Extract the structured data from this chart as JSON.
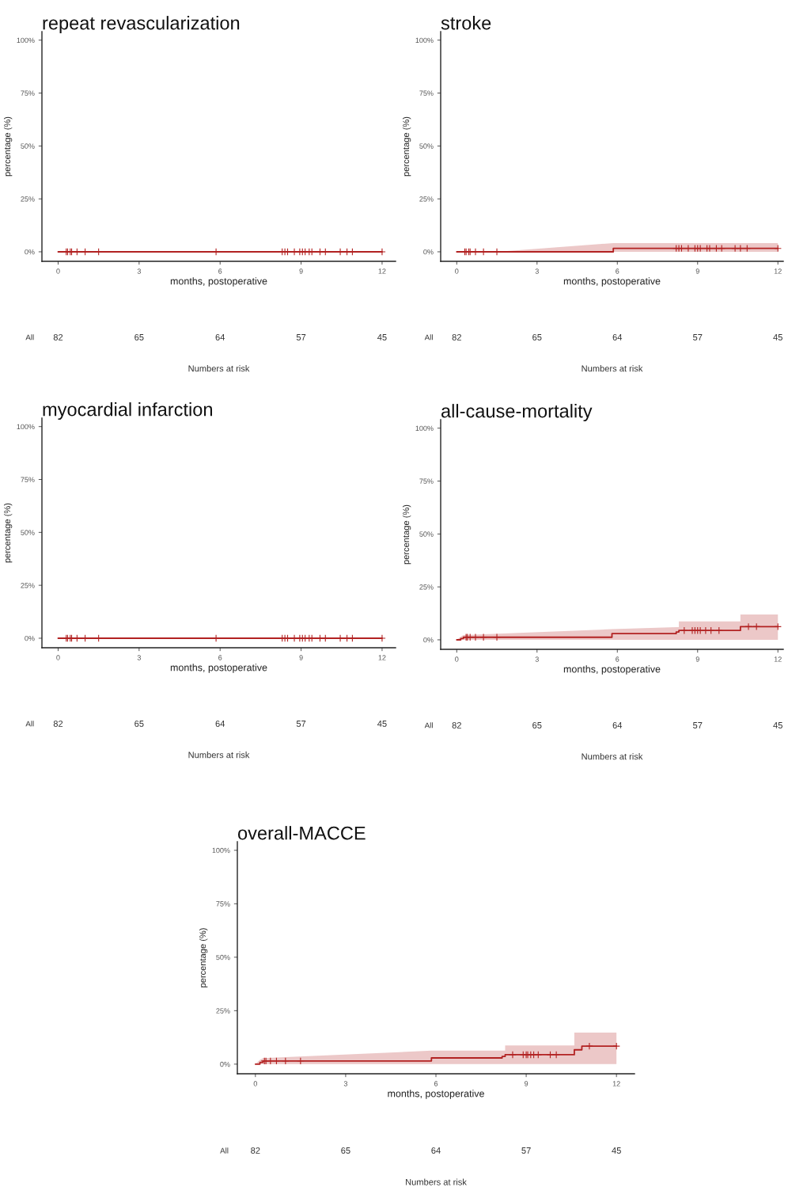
{
  "chart_data": [
    {
      "type": "step",
      "title": "repeat revascularization",
      "xlabel": "months, postoperative",
      "ylabel": "percentage (%)",
      "xlim": [
        -0.6,
        12.5
      ],
      "ylim": [
        -4.5,
        104
      ],
      "xticks": [
        0,
        3,
        6,
        9,
        12
      ],
      "yticks": [
        {
          "value": 0,
          "label": "0%"
        },
        {
          "value": 25,
          "label": "25%"
        },
        {
          "value": 50,
          "label": "50%"
        },
        {
          "value": 75,
          "label": "75%"
        },
        {
          "value": 100,
          "label": "100%"
        }
      ],
      "series": [
        {
          "color": "#b22222",
          "x": [
            0,
            12
          ],
          "values": [
            0,
            0
          ]
        },
        {
          "type": "scatter",
          "marker": "cross",
          "color": "#b22222",
          "x": [
            0.3,
            0.35,
            0.45,
            0.5,
            0.7,
            1.0,
            1.5,
            5.85,
            8.3,
            8.4,
            8.5,
            8.75,
            8.95,
            9.05,
            9.15,
            9.3,
            9.4,
            9.7,
            9.9,
            10.45,
            10.7,
            10.9,
            12
          ],
          "values": [
            0,
            0,
            0,
            0,
            0,
            0,
            0,
            0,
            0,
            0,
            0,
            0,
            0,
            0,
            0,
            0,
            0,
            0,
            0,
            0,
            0,
            0,
            0
          ]
        }
      ],
      "annotations": [
        "All",
        "82",
        "65",
        "64",
        "57",
        "45",
        "Numbers at risk"
      ]
    },
    {
      "type": "step",
      "title": "stroke",
      "xlabel": "months, postoperative",
      "ylabel": "percentage (%)",
      "xlim": [
        -0.6,
        12.2
      ],
      "ylim": [
        -4.5,
        104
      ],
      "xticks": [
        0,
        3,
        6,
        9,
        12
      ],
      "yticks": [
        {
          "value": 0,
          "label": "0%"
        },
        {
          "value": 25,
          "label": "25%"
        },
        {
          "value": 50,
          "label": "50%"
        },
        {
          "value": 75,
          "label": "75%"
        },
        {
          "value": 100,
          "label": "100%"
        }
      ],
      "series": [
        {
          "color": "#b22222",
          "x": [
            0,
            1.5,
            5.85,
            12
          ],
          "values": [
            0,
            0,
            1.6,
            1.6
          ],
          "lower": [
            0,
            0,
            0,
            0
          ],
          "upper": [
            0,
            0,
            4.1,
            4.1
          ]
        },
        {
          "type": "scatter",
          "marker": "cross",
          "color": "#b22222",
          "x": [
            0.3,
            0.35,
            0.45,
            0.5,
            0.7,
            1.0,
            1.5,
            8.2,
            8.3,
            8.4,
            8.65,
            8.9,
            9.0,
            9.1,
            9.35,
            9.45,
            9.7,
            9.9,
            10.4,
            10.6,
            10.85,
            12
          ],
          "values": [
            0,
            0,
            0,
            0,
            0,
            0,
            0,
            1.6,
            1.6,
            1.6,
            1.6,
            1.6,
            1.6,
            1.6,
            1.6,
            1.6,
            1.6,
            1.6,
            1.6,
            1.6,
            1.6,
            1.6
          ]
        }
      ],
      "annotations": [
        "All",
        "82",
        "65",
        "64",
        "57",
        "45",
        "Numbers at risk"
      ]
    },
    {
      "type": "step",
      "title": "myocardial infarction",
      "xlabel": "months, postoperative",
      "ylabel": "percentage (%)",
      "xlim": [
        -0.6,
        12.5
      ],
      "ylim": [
        -4.5,
        104
      ],
      "xticks": [
        0,
        3,
        6,
        9,
        12
      ],
      "yticks": [
        {
          "value": 0,
          "label": "0%"
        },
        {
          "value": 25,
          "label": "25%"
        },
        {
          "value": 50,
          "label": "50%"
        },
        {
          "value": 75,
          "label": "75%"
        },
        {
          "value": 100,
          "label": "100%"
        }
      ],
      "series": [
        {
          "color": "#b22222",
          "x": [
            0,
            12
          ],
          "values": [
            0,
            0
          ]
        },
        {
          "type": "scatter",
          "marker": "cross",
          "color": "#b22222",
          "x": [
            0.3,
            0.35,
            0.45,
            0.5,
            0.7,
            1.0,
            1.5,
            5.85,
            8.3,
            8.4,
            8.5,
            8.75,
            8.95,
            9.05,
            9.15,
            9.3,
            9.4,
            9.7,
            9.9,
            10.45,
            10.7,
            10.9,
            12
          ],
          "values": [
            0,
            0,
            0,
            0,
            0,
            0,
            0,
            0,
            0,
            0,
            0,
            0,
            0,
            0,
            0,
            0,
            0,
            0,
            0,
            0,
            0,
            0,
            0
          ]
        }
      ],
      "annotations": [
        "All",
        "82",
        "65",
        "64",
        "57",
        "45",
        "Numbers at risk"
      ]
    },
    {
      "type": "step",
      "title": "all-cause-mortality",
      "xlabel": "months, postoperative",
      "ylabel": "percentage (%)",
      "xlim": [
        -0.6,
        12.2
      ],
      "ylim": [
        -4.5,
        104
      ],
      "xticks": [
        0,
        3,
        6,
        9,
        12
      ],
      "yticks": [
        {
          "value": 0,
          "label": "0%"
        },
        {
          "value": 25,
          "label": "25%"
        },
        {
          "value": 50,
          "label": "50%"
        },
        {
          "value": 75,
          "label": "75%"
        },
        {
          "value": 100,
          "label": "100%"
        }
      ],
      "series": [
        {
          "color": "#b22222",
          "x": [
            0,
            0.15,
            0.25,
            5.8,
            8.2,
            8.3,
            8.3,
            10.6,
            10.6,
            12
          ],
          "values": [
            0,
            0.6,
            1.2,
            2.9,
            3.7,
            4.4,
            4.4,
            6.2,
            6.2,
            6.2
          ],
          "lower": [
            0,
            0,
            0,
            0,
            0,
            0,
            0,
            0,
            0,
            0
          ],
          "upper": [
            0,
            1.5,
            2.2,
            5.0,
            6.0,
            6.0,
            8.7,
            8.7,
            12,
            12
          ]
        },
        {
          "type": "scatter",
          "marker": "cross",
          "color": "#b22222",
          "x": [
            0.35,
            0.4,
            0.5,
            0.7,
            1.0,
            1.5,
            8.5,
            8.8,
            8.9,
            9.0,
            9.1,
            9.3,
            9.5,
            9.8,
            10.9,
            11.2,
            12
          ],
          "values": [
            1.2,
            1.2,
            1.2,
            1.2,
            1.2,
            1.2,
            4.4,
            4.4,
            4.4,
            4.4,
            4.4,
            4.4,
            4.4,
            4.4,
            6.2,
            6.2,
            6.2
          ]
        }
      ],
      "annotations": [
        "All",
        "82",
        "65",
        "64",
        "57",
        "45",
        "Numbers at risk"
      ]
    },
    {
      "type": "step",
      "title": "overall-MACCE",
      "xlabel": "months, postoperative",
      "ylabel": "percentage (%)",
      "xlim": [
        -0.6,
        12.6
      ],
      "ylim": [
        -4.5,
        104
      ],
      "xticks": [
        0,
        3,
        6,
        9,
        12
      ],
      "yticks": [
        {
          "value": 0,
          "label": "0%"
        },
        {
          "value": 25,
          "label": "25%"
        },
        {
          "value": 50,
          "label": "50%"
        },
        {
          "value": 75,
          "label": "75%"
        },
        {
          "value": 100,
          "label": "100%"
        }
      ],
      "series": [
        {
          "color": "#b22222",
          "x": [
            0,
            0.15,
            0.25,
            5.85,
            8.2,
            8.3,
            8.3,
            10.6,
            10.6,
            10.85,
            12
          ],
          "values": [
            0,
            0.8,
            1.5,
            2.9,
            3.6,
            4.4,
            4.4,
            6.7,
            6.7,
            8.4,
            8.4
          ],
          "lower": [
            0,
            0,
            0,
            0,
            0,
            0,
            0,
            0,
            0,
            0,
            0
          ],
          "upper": [
            0,
            2,
            2.8,
            6.3,
            6.3,
            6.3,
            8.7,
            8.7,
            14.8,
            14.8,
            14.8
          ]
        },
        {
          "type": "scatter",
          "marker": "cross",
          "color": "#b22222",
          "x": [
            0.3,
            0.35,
            0.5,
            0.7,
            1.0,
            1.5,
            8.55,
            8.9,
            9.0,
            9.05,
            9.15,
            9.25,
            9.4,
            9.8,
            10.0,
            11.1,
            12
          ],
          "values": [
            1.5,
            1.5,
            1.5,
            1.5,
            1.5,
            1.5,
            4.4,
            4.4,
            4.4,
            4.4,
            4.4,
            4.4,
            4.4,
            4.4,
            4.4,
            8.4,
            8.4
          ]
        }
      ],
      "annotations": [
        "All",
        "82",
        "65",
        "64",
        "57",
        "45",
        "Numbers at risk"
      ]
    }
  ]
}
